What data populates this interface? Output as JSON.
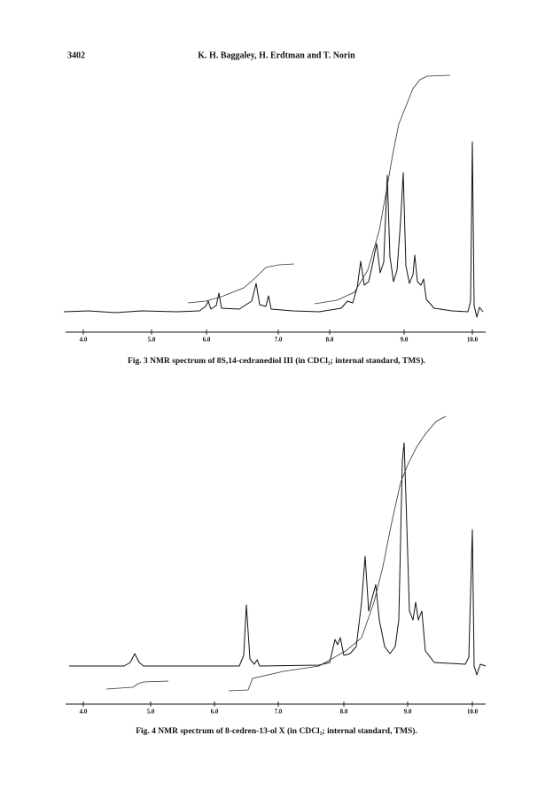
{
  "header": {
    "page_number": "3402",
    "authors": "K. H. Baggaley, H. Erdtman and T. Norin"
  },
  "figures": [
    {
      "tick_labels": [
        "4.0",
        "5.0",
        "6.0",
        "7.0",
        "8.0",
        "9.0",
        "10.0"
      ],
      "caption": "Fig. 3 NMR spectrum of 8S,14-cedranediol III (in CDCl₃; internal standard, TMS)."
    },
    {
      "tick_labels": [
        "4.0",
        "5.0",
        "6.0",
        "7.0",
        "8.0",
        "9.0",
        "10.0"
      ],
      "caption": "Fig. 4 NMR spectrum of 8-cedren-13-ol X (in CDCl₃; internal standard, TMS)."
    }
  ]
}
